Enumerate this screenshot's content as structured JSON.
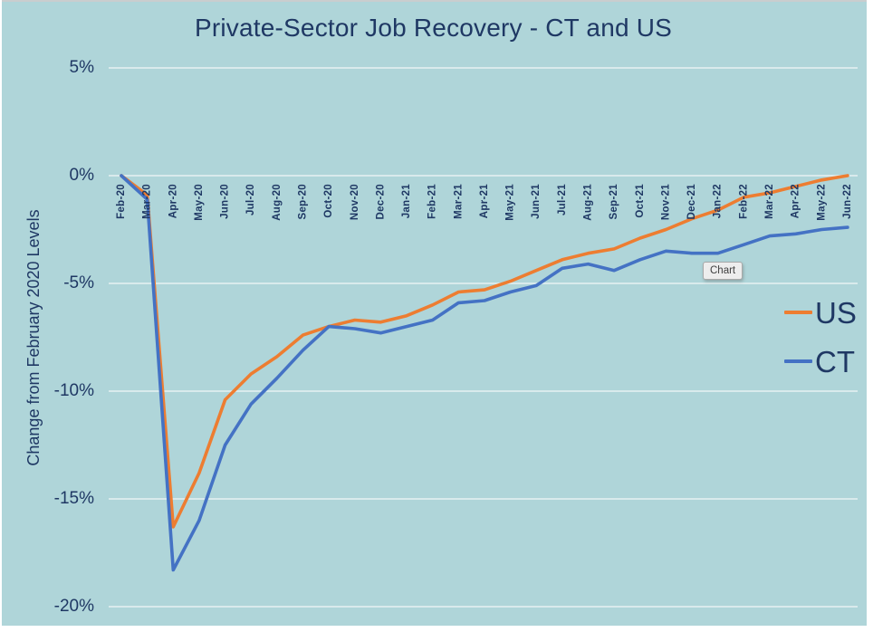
{
  "tooltip": {
    "label": "Chart"
  },
  "chart": {
    "title": "Private-Sector Job Recovery - CT and US",
    "y_axis_title": "Change from February 2020 Levels"
  },
  "chart_data": {
    "type": "line",
    "title": "Private-Sector Job Recovery - CT and US",
    "xlabel": "",
    "ylabel": "Change from February 2020 Levels",
    "categories": [
      "Feb-20",
      "Mar-20",
      "Apr-20",
      "May-20",
      "Jun-20",
      "Jul-20",
      "Aug-20",
      "Sep-20",
      "Oct-20",
      "Nov-20",
      "Dec-20",
      "Jan-21",
      "Feb-21",
      "Mar-21",
      "Apr-21",
      "May-21",
      "Jun-21",
      "Jul-21",
      "Aug-21",
      "Sep-21",
      "Oct-21",
      "Nov-21",
      "Dec-21",
      "Jan-22",
      "Feb-22",
      "Mar-22",
      "Apr-22",
      "May-22",
      "Jun-22"
    ],
    "series": [
      {
        "name": "US",
        "color": "#ED7D31",
        "values": [
          0.0,
          -0.9,
          -16.3,
          -13.8,
          -10.4,
          -9.2,
          -8.4,
          -7.4,
          -7.0,
          -6.7,
          -6.8,
          -6.5,
          -6.0,
          -5.4,
          -5.3,
          -4.9,
          -4.4,
          -3.9,
          -3.6,
          -3.4,
          -2.9,
          -2.5,
          -2.0,
          -1.6,
          -1.0,
          -0.8,
          -0.5,
          -0.2,
          0.0
        ]
      },
      {
        "name": "CT",
        "color": "#4472C4",
        "values": [
          0.0,
          -1.1,
          -18.3,
          -16.0,
          -12.5,
          -10.6,
          -9.4,
          -8.1,
          -7.0,
          -7.1,
          -7.3,
          -7.0,
          -6.7,
          -5.9,
          -5.8,
          -5.4,
          -5.1,
          -4.3,
          -4.1,
          -4.4,
          -3.9,
          -3.5,
          -3.6,
          -3.6,
          -3.2,
          -2.8,
          -2.7,
          -2.5,
          -2.4
        ]
      }
    ],
    "ylim": [
      -20,
      5
    ],
    "yticks": {
      "labels": [
        "5%",
        "0%",
        "-5%",
        "-10%",
        "-15%",
        "-20%"
      ],
      "values": [
        5,
        0,
        -5,
        -10,
        -15,
        -20
      ]
    },
    "grid": true,
    "legend_position": "right",
    "background_color": "#AFD5D9",
    "text_color": "#1F3864",
    "gridline_color": "#E7F1F2"
  }
}
